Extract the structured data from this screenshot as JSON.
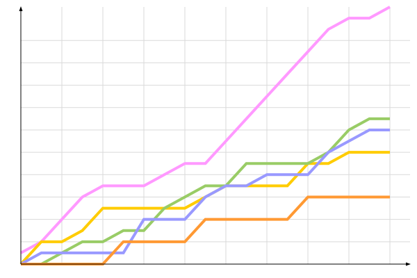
{
  "chart_data": {
    "type": "line",
    "title": "",
    "xlabel": "",
    "ylabel": "",
    "x": [
      0,
      1,
      2,
      3,
      4,
      5,
      6,
      7,
      8,
      9,
      10,
      11,
      12,
      13,
      14,
      15,
      16,
      17,
      18
    ],
    "xlim": [
      0,
      18
    ],
    "ylim": [
      0,
      11.5
    ],
    "grid": true,
    "series": [
      {
        "color": "#ff99ff",
        "values": [
          0.5,
          1,
          2,
          3,
          3.5,
          3.5,
          3.5,
          4,
          4.5,
          4.5,
          5.5,
          6.5,
          7.5,
          8.5,
          9.5,
          10.5,
          11,
          11,
          11.5
        ]
      },
      {
        "color": "#ffcc00",
        "values": [
          0,
          1,
          1,
          1.5,
          2.5,
          2.5,
          2.5,
          2.5,
          2.5,
          3,
          3.5,
          3.5,
          3.5,
          3.5,
          4.5,
          4.5,
          5,
          5,
          5
        ]
      },
      {
        "color": "#99cc66",
        "values": [
          0,
          0,
          0.5,
          1,
          1,
          1.5,
          1.5,
          2.5,
          3,
          3.5,
          3.5,
          4.5,
          4.5,
          4.5,
          4.5,
          5,
          6,
          6.5,
          6.5
        ]
      },
      {
        "color": "#9999ff",
        "values": [
          0,
          0.5,
          0.5,
          0.5,
          0.5,
          0.5,
          2,
          2,
          2,
          3,
          3.5,
          3.5,
          4,
          4,
          4,
          5,
          5.5,
          6,
          6
        ]
      },
      {
        "color": "#ff9933",
        "values": [
          0,
          0,
          0,
          0,
          0,
          1,
          1,
          1,
          1,
          2,
          2,
          2,
          2,
          2,
          3,
          3,
          3,
          3,
          3
        ]
      }
    ]
  }
}
